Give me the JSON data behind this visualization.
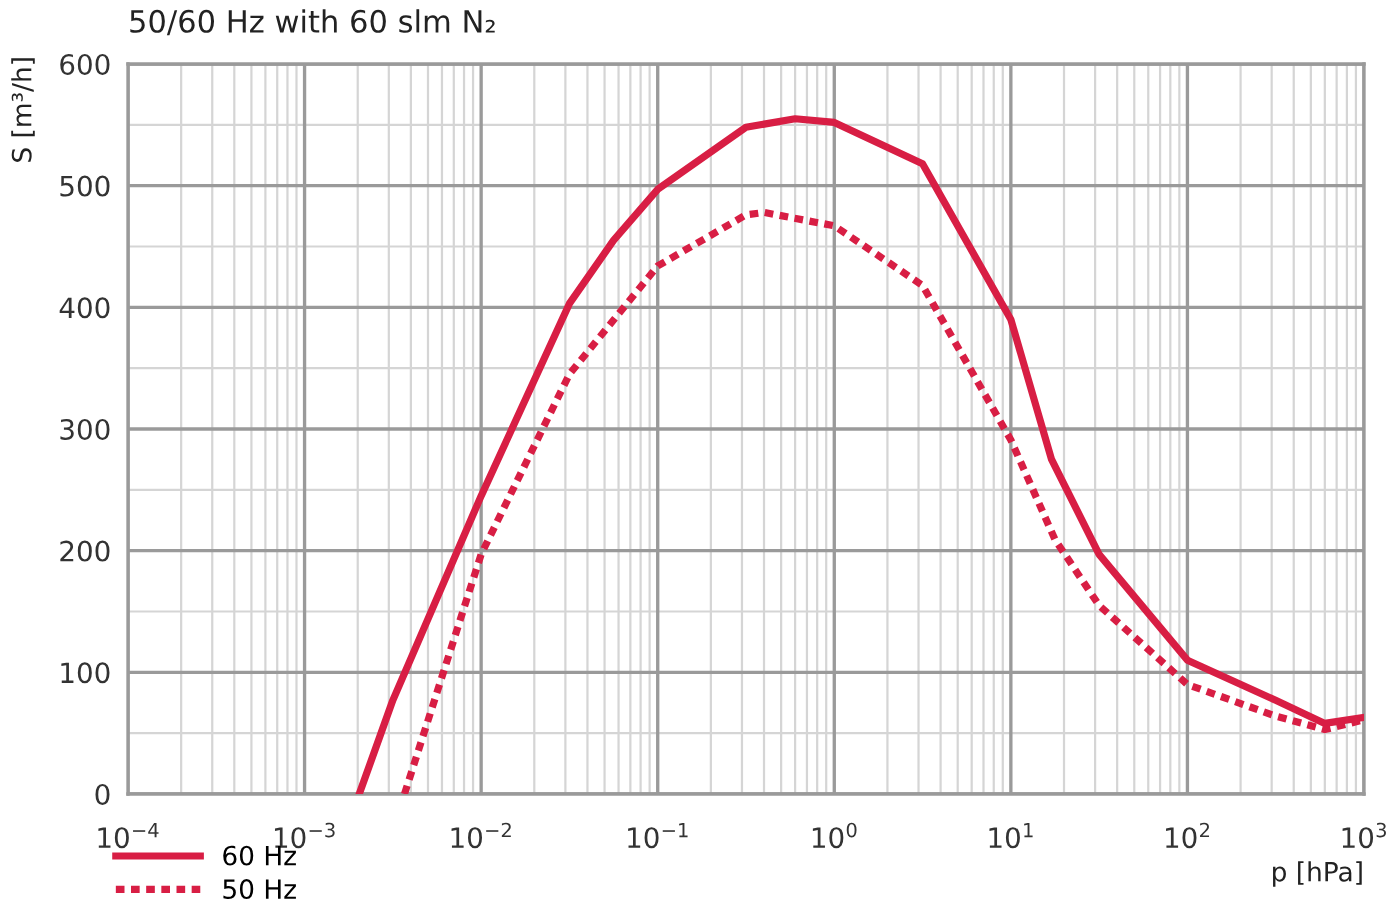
{
  "chart_data": {
    "type": "line",
    "title": "50/60 Hz with 60 slm N₂",
    "xlabel": "p [hPa]",
    "ylabel": "S [m³/h]",
    "log": "x",
    "grid": true,
    "legend": "bottom left",
    "marker": "none",
    "xlim": [
      0.0001,
      1000
    ],
    "ylim": [
      0,
      600
    ],
    "xticks": [
      {
        "value": 0.0001,
        "label": "10$^{−4}$"
      },
      {
        "value": 0.001,
        "label": "10$^{−3}$"
      },
      {
        "value": 0.01,
        "label": "10$^{−2}$"
      },
      {
        "value": 0.1,
        "label": "10$^{−1}$"
      },
      {
        "value": 1,
        "label": "10$^{0}$"
      },
      {
        "value": 10,
        "label": "10$^{1}$"
      },
      {
        "value": 100,
        "label": "10$^{2}$"
      },
      {
        "value": 1000,
        "label": "10$^{3}$"
      }
    ],
    "yticks": [
      0,
      {
        "value": 50,
        "label": null
      },
      100,
      {
        "value": 150,
        "label": null
      },
      200,
      {
        "value": 250,
        "label": null
      },
      300,
      {
        "value": 350,
        "label": null
      },
      400,
      {
        "value": 450,
        "label": null
      },
      500,
      {
        "value": 550,
        "label": null
      },
      600
    ],
    "series": [
      {
        "name": "60 Hz",
        "color": "#d81e44",
        "line_style": "solid",
        "x": [
          0.00204,
          0.00316,
          0.01,
          0.0316,
          0.0562,
          0.1,
          0.316,
          0.6,
          1,
          3.16,
          10,
          17,
          31.6,
          100,
          316,
          600,
          1000
        ],
        "values": [
          0,
          77,
          245,
          403,
          455,
          497,
          548,
          555,
          552,
          518,
          390,
          275,
          197,
          110,
          77,
          58,
          63
        ]
      },
      {
        "name": "50 Hz",
        "color": "#d81e44",
        "line_style": "dotted",
        "x": [
          0.00368,
          0.01,
          0.0316,
          0.1,
          0.316,
          0.4,
          1,
          3.16,
          10,
          17.8,
          31.6,
          100,
          316,
          600,
          1000
        ],
        "values": [
          0,
          197,
          345,
          434,
          476,
          478,
          467,
          418,
          291,
          209,
          155,
          90,
          64,
          53,
          61
        ]
      }
    ]
  }
}
